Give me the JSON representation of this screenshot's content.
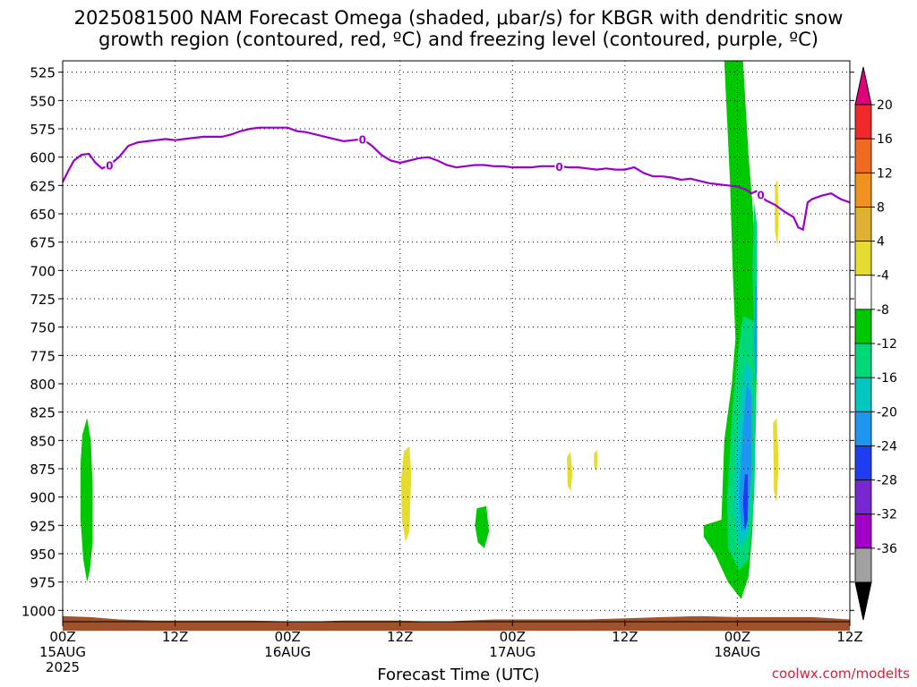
{
  "title": {
    "line1": "2025081500 NAM Forecast Omega (shaded, μbar/s) for KBGR with dendritic snow",
    "line2": "growth region (contoured, red, ºC) and freezing level (contoured, purple, ºC)"
  },
  "credit": "coolwx.com/modelts",
  "chart_data": {
    "type": "time-height",
    "title": "2025081500 NAM Forecast Omega (shaded, μbar/s) for KBGR with dendritic snow growth region (contoured, red, ºC) and freezing level (contoured, purple, ºC)",
    "xlabel": "Forecast Time (UTC)",
    "ylabel": "",
    "x_ticks": [
      {
        "hour": 0,
        "label": "00Z",
        "date": "15AUG",
        "year": "2025"
      },
      {
        "hour": 12,
        "label": "12Z",
        "date": "",
        "year": ""
      },
      {
        "hour": 24,
        "label": "00Z",
        "date": "16AUG",
        "year": ""
      },
      {
        "hour": 36,
        "label": "12Z",
        "date": "",
        "year": ""
      },
      {
        "hour": 48,
        "label": "00Z",
        "date": "17AUG",
        "year": ""
      },
      {
        "hour": 60,
        "label": "12Z",
        "date": "",
        "year": ""
      },
      {
        "hour": 72,
        "label": "00Z",
        "date": "18AUG",
        "year": ""
      },
      {
        "hour": 84,
        "label": "12Z",
        "date": "",
        "year": ""
      }
    ],
    "xlim": [
      0,
      84
    ],
    "y_ticks": [
      "525",
      "550",
      "575",
      "600",
      "625",
      "650",
      "675",
      "700",
      "725",
      "750",
      "775",
      "800",
      "825",
      "850",
      "875",
      "900",
      "925",
      "950",
      "975",
      "1000"
    ],
    "ylim_hPa": [
      515,
      1010
    ],
    "grid": true,
    "colorbar": {
      "labels": [
        "20",
        "16",
        "12",
        "8",
        "4",
        "-4",
        "-8",
        "-12",
        "-16",
        "-20",
        "-24",
        "-28",
        "-32",
        "-36"
      ],
      "colors": [
        "#e0007a",
        "#f02828",
        "#f06a20",
        "#f0901e",
        "#e0b030",
        "#e4dc30",
        "#ffffff",
        "#00c800",
        "#00d878",
        "#00c8c0",
        "#1e96f0",
        "#1e3cf0",
        "#7828d2",
        "#a000c8",
        "#a0a0a0",
        "#000000"
      ]
    },
    "freezing_level": {
      "label": "0",
      "color": "#9900cc",
      "points": [
        [
          0,
          622
        ],
        [
          0.6,
          612
        ],
        [
          1.2,
          603
        ],
        [
          2,
          598
        ],
        [
          2.8,
          597
        ],
        [
          3.5,
          605
        ],
        [
          4.2,
          610
        ],
        [
          5,
          607
        ],
        [
          6,
          600
        ],
        [
          7,
          590
        ],
        [
          8,
          587
        ],
        [
          9,
          586
        ],
        [
          10,
          585
        ],
        [
          11,
          584
        ],
        [
          12,
          585
        ],
        [
          13,
          584
        ],
        [
          14,
          583
        ],
        [
          15,
          582
        ],
        [
          16,
          582
        ],
        [
          17,
          582
        ],
        [
          18,
          580
        ],
        [
          19,
          577
        ],
        [
          20,
          575
        ],
        [
          21,
          574
        ],
        [
          22,
          574
        ],
        [
          23,
          574
        ],
        [
          24,
          574
        ],
        [
          25,
          577
        ],
        [
          26,
          578
        ],
        [
          27,
          580
        ],
        [
          28,
          582
        ],
        [
          29,
          584
        ],
        [
          30,
          586
        ],
        [
          31,
          585
        ],
        [
          32,
          584
        ],
        [
          33,
          590
        ],
        [
          34,
          598
        ],
        [
          35,
          603
        ],
        [
          36,
          605
        ],
        [
          37,
          603
        ],
        [
          38,
          601
        ],
        [
          39,
          600
        ],
        [
          40,
          603
        ],
        [
          41,
          607
        ],
        [
          42,
          609
        ],
        [
          43,
          608
        ],
        [
          44,
          607
        ],
        [
          45,
          607
        ],
        [
          46,
          608
        ],
        [
          47,
          608
        ],
        [
          48,
          609
        ],
        [
          49,
          609
        ],
        [
          50,
          609
        ],
        [
          51,
          608
        ],
        [
          52,
          608
        ],
        [
          53,
          608
        ],
        [
          54,
          609
        ],
        [
          55,
          609
        ],
        [
          56,
          610
        ],
        [
          57,
          611
        ],
        [
          58,
          610
        ],
        [
          59,
          611
        ],
        [
          60,
          611
        ],
        [
          61,
          609
        ],
        [
          62,
          614
        ],
        [
          63,
          617
        ],
        [
          64,
          617
        ],
        [
          65,
          618
        ],
        [
          66,
          620
        ],
        [
          67,
          619
        ],
        [
          68,
          621
        ],
        [
          69,
          623
        ],
        [
          70,
          624
        ],
        [
          71,
          625
        ],
        [
          72,
          626
        ],
        [
          73,
          629
        ],
        [
          73.5,
          632
        ],
        [
          74,
          630
        ],
        [
          74.5,
          633
        ],
        [
          75,
          638
        ],
        [
          76,
          642
        ],
        [
          77,
          648
        ],
        [
          78,
          653
        ],
        [
          78.5,
          662
        ],
        [
          79,
          664
        ],
        [
          79.5,
          640
        ],
        [
          80,
          637
        ],
        [
          81,
          634
        ],
        [
          82,
          632
        ],
        [
          83,
          637
        ],
        [
          84,
          640
        ]
      ],
      "label_hours": [
        5,
        32,
        53,
        74.5
      ]
    },
    "terrain": {
      "color": "#a0522d",
      "top_hPa": [
        [
          0,
          1005
        ],
        [
          3,
          1006
        ],
        [
          6,
          1008
        ],
        [
          10,
          1009
        ],
        [
          14,
          1009
        ],
        [
          20,
          1009
        ],
        [
          26,
          1010
        ],
        [
          30,
          1009
        ],
        [
          36,
          1009
        ],
        [
          40,
          1010
        ],
        [
          46,
          1008
        ],
        [
          50,
          1008
        ],
        [
          56,
          1008
        ],
        [
          60,
          1007
        ],
        [
          64,
          1006
        ],
        [
          68,
          1005
        ],
        [
          72,
          1006
        ],
        [
          76,
          1006
        ],
        [
          80,
          1006
        ],
        [
          84,
          1008
        ]
      ],
      "bottom_hPa": 1018
    },
    "omega_shaded": [
      {
        "color": "#00c800",
        "points": [
          [
            2.1,
            845
          ],
          [
            2.6,
            830
          ],
          [
            3.0,
            850
          ],
          [
            3.2,
            890
          ],
          [
            3.2,
            940
          ],
          [
            2.9,
            965
          ],
          [
            2.6,
            975
          ],
          [
            2.2,
            955
          ],
          [
            1.9,
            920
          ],
          [
            1.9,
            870
          ]
        ]
      },
      {
        "color": "#e4dc30",
        "points": [
          [
            36.4,
            860
          ],
          [
            37.0,
            855
          ],
          [
            37.2,
            880
          ],
          [
            37.0,
            930
          ],
          [
            36.6,
            940
          ],
          [
            36.2,
            920
          ],
          [
            36.1,
            885
          ]
        ]
      },
      {
        "color": "#00c800",
        "points": [
          [
            44.2,
            910
          ],
          [
            45.2,
            908
          ],
          [
            45.5,
            930
          ],
          [
            45.0,
            945
          ],
          [
            44.3,
            940
          ],
          [
            44.0,
            925
          ]
        ]
      },
      {
        "color": "#e4dc30",
        "points": [
          [
            53.8,
            865
          ],
          [
            54.2,
            860
          ],
          [
            54.4,
            880
          ],
          [
            54.2,
            895
          ],
          [
            53.9,
            890
          ]
        ]
      },
      {
        "color": "#e4dc30",
        "points": [
          [
            56.7,
            862
          ],
          [
            57.0,
            858
          ],
          [
            57.1,
            870
          ],
          [
            56.9,
            878
          ],
          [
            56.7,
            872
          ]
        ]
      },
      {
        "color": "#e4dc30",
        "points": [
          [
            76.0,
            625
          ],
          [
            76.3,
            620
          ],
          [
            76.4,
            650
          ],
          [
            76.3,
            680
          ],
          [
            76.0,
            665
          ]
        ]
      },
      {
        "color": "#e4dc30",
        "points": [
          [
            75.8,
            835
          ],
          [
            76.2,
            830
          ],
          [
            76.4,
            870
          ],
          [
            76.2,
            905
          ],
          [
            75.9,
            895
          ]
        ]
      },
      {
        "color": "#00c800",
        "points": [
          [
            70.6,
            515
          ],
          [
            72.6,
            515
          ],
          [
            73.2,
            600
          ],
          [
            73.6,
            640
          ],
          [
            74.0,
            700
          ],
          [
            74.1,
            760
          ],
          [
            74.0,
            820
          ],
          [
            73.8,
            880
          ],
          [
            73.6,
            930
          ],
          [
            73.2,
            970
          ],
          [
            72.4,
            990
          ],
          [
            71.0,
            975
          ],
          [
            69.6,
            950
          ],
          [
            68.4,
            935
          ],
          [
            68.4,
            925
          ],
          [
            70.3,
            920
          ],
          [
            70.6,
            850
          ],
          [
            71.4,
            800
          ],
          [
            71.8,
            760
          ],
          [
            71.5,
            700
          ],
          [
            71.2,
            620
          ]
        ]
      },
      {
        "color": "#00d878",
        "points": [
          [
            72.6,
            740
          ],
          [
            73.8,
            745
          ],
          [
            74.0,
            820
          ],
          [
            73.8,
            900
          ],
          [
            73.2,
            955
          ],
          [
            72.2,
            965
          ],
          [
            71.0,
            945
          ],
          [
            70.9,
            900
          ],
          [
            71.5,
            820
          ],
          [
            72.1,
            770
          ]
        ]
      },
      {
        "color": "#00c8c0",
        "points": [
          [
            72.8,
            780
          ],
          [
            73.6,
            790
          ],
          [
            73.6,
            870
          ],
          [
            73.1,
            935
          ],
          [
            72.2,
            945
          ],
          [
            71.6,
            910
          ],
          [
            71.9,
            850
          ],
          [
            72.4,
            810
          ]
        ]
      },
      {
        "color": "#1e96f0",
        "points": [
          [
            73.0,
            800
          ],
          [
            73.5,
            810
          ],
          [
            73.5,
            880
          ],
          [
            73.0,
            925
          ],
          [
            72.4,
            930
          ],
          [
            72.2,
            895
          ],
          [
            72.5,
            850
          ]
        ]
      },
      {
        "color": "#1e3cf0",
        "points": [
          [
            72.8,
            880
          ],
          [
            73.1,
            880
          ],
          [
            73.1,
            920
          ],
          [
            72.8,
            930
          ],
          [
            72.6,
            905
          ]
        ]
      },
      {
        "color": "#00d878",
        "points": [
          [
            73.8,
            640
          ],
          [
            74.1,
            660
          ],
          [
            74.1,
            740
          ],
          [
            73.8,
            760
          ],
          [
            73.6,
            700
          ]
        ]
      },
      {
        "color": "#1e96f0",
        "points": [
          [
            73.9,
            710
          ],
          [
            74.1,
            715
          ],
          [
            74.1,
            790
          ],
          [
            73.9,
            800
          ],
          [
            73.8,
            760
          ]
        ]
      }
    ]
  }
}
